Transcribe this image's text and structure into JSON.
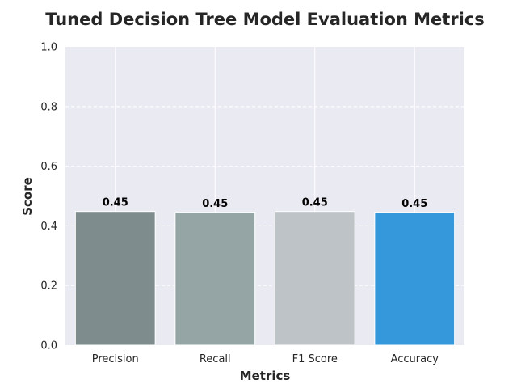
{
  "chart_data": {
    "type": "bar",
    "title": "Tuned Decision Tree Model Evaluation Metrics",
    "xlabel": "Metrics",
    "ylabel": "Score",
    "categories": [
      "Precision",
      "Recall",
      "F1 Score",
      "Accuracy"
    ],
    "values": [
      0.448,
      0.445,
      0.448,
      0.445
    ],
    "value_labels": [
      "0.45",
      "0.45",
      "0.45",
      "0.45"
    ],
    "colors": [
      "#7f8c8d",
      "#95a5a6",
      "#bdc3c7",
      "#3498db"
    ],
    "ylim": [
      0,
      1.0
    ],
    "yticks": [
      0.0,
      0.2,
      0.4,
      0.6,
      0.8,
      1.0
    ],
    "ytick_labels": [
      "0.0",
      "0.2",
      "0.4",
      "0.6",
      "0.8",
      "1.0"
    ],
    "grid": true,
    "background": "#eaeaf2"
  }
}
